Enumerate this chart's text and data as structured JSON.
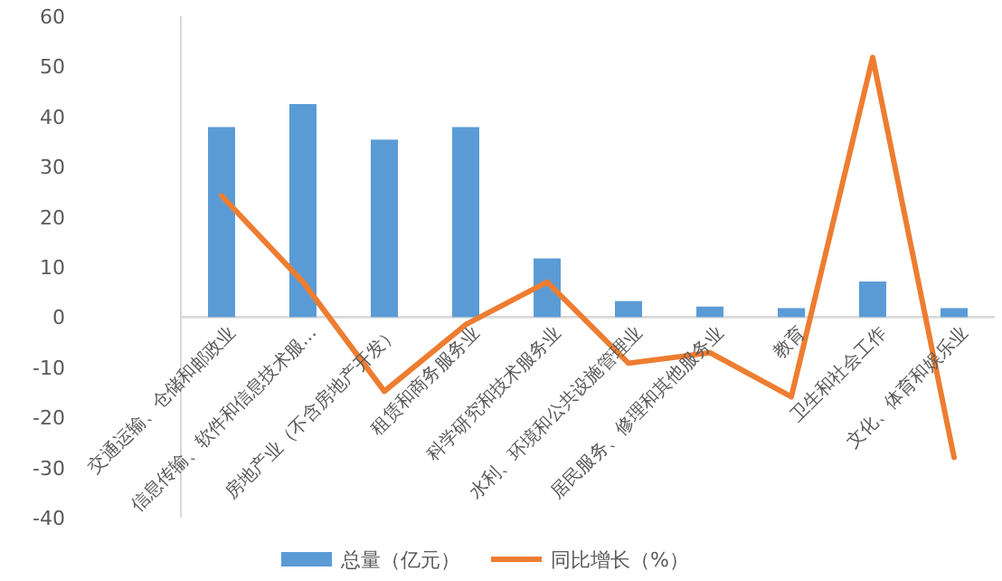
{
  "chart_data": {
    "type": "bar",
    "categories": [
      "交通运输、仓储和邮政业",
      "信息传输、软件和信息技术服…",
      "房地产业（不含房地产开发）",
      "租赁和商务服务业",
      "科学研究和技术服务业",
      "水利、环境和公共设施管理业",
      "居民服务、修理和其他服务业",
      "教育",
      "卫生和社会工作",
      "文化、体育和娱乐业"
    ],
    "series": [
      {
        "name": "总量（亿元）",
        "color": "#5b9bd5",
        "values": [
          37.9,
          42.5,
          35.4,
          37.9,
          11.7,
          3.2,
          2.1,
          1.8,
          7.1,
          1.8
        ]
      },
      {
        "name": "同比增长（%）",
        "type": "line",
        "color": "#ed7d31",
        "values": [
          24.2,
          7.0,
          -14.8,
          -1.5,
          7.0,
          -9.2,
          -7.1,
          -15.9,
          51.8,
          -28.0
        ]
      }
    ],
    "ylim": [
      -40,
      60
    ],
    "yticks": [
      -40,
      -30,
      -20,
      -10,
      0,
      10,
      20,
      30,
      40,
      50,
      60
    ],
    "grid": false,
    "legend": "bottom",
    "marker": "none",
    "line_style": "solid"
  }
}
